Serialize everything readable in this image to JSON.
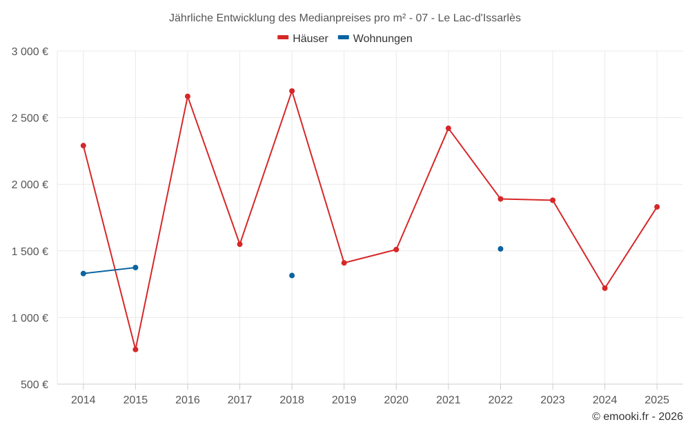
{
  "chart_data": {
    "type": "line",
    "title": "Jährliche Entwicklung des Medianpreises pro m² - 07 - Le Lac-d'Issarlès",
    "categories": [
      "2014",
      "2015",
      "2016",
      "2017",
      "2018",
      "2019",
      "2020",
      "2021",
      "2022",
      "2023",
      "2024",
      "2025"
    ],
    "ylim": [
      500,
      3000
    ],
    "yticks": [
      500,
      1000,
      1500,
      2000,
      2500,
      3000
    ],
    "ytick_labels": [
      "500 €",
      "1 000 €",
      "1 500 €",
      "2 000 €",
      "2 500 €",
      "3 000 €"
    ],
    "xlabel": "",
    "ylabel": "",
    "grid": true,
    "legend_position": "top-center",
    "series": [
      {
        "name": "Häuser",
        "color": "#d62728",
        "values": [
          2290,
          760,
          2660,
          1550,
          2700,
          1410,
          1510,
          2420,
          1890,
          1880,
          1220,
          1830
        ]
      },
      {
        "name": "Wohnungen",
        "color": "#0a64a0",
        "values": [
          1330,
          1375,
          null,
          null,
          1315,
          null,
          null,
          null,
          1515,
          null,
          null,
          null
        ]
      }
    ]
  },
  "credit": "© emooki.fr - 2026"
}
